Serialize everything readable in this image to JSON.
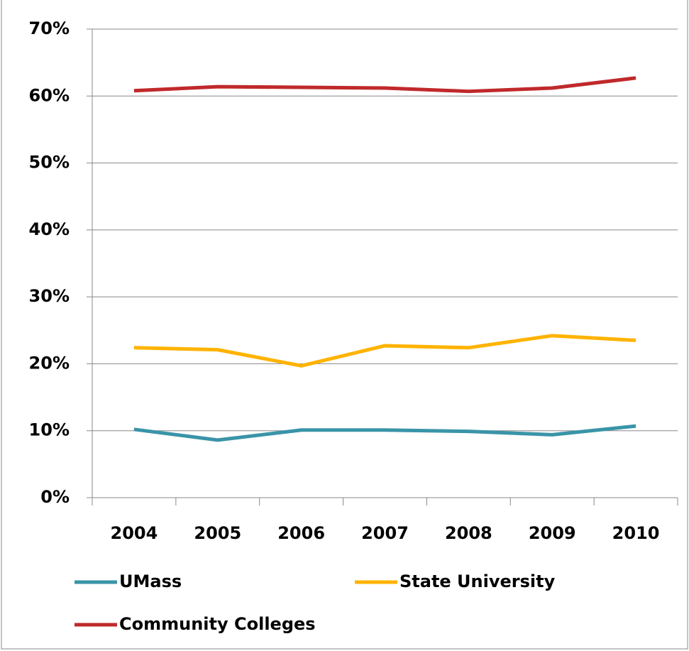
{
  "chart_data": {
    "type": "line",
    "categories": [
      "2004",
      "2005",
      "2006",
      "2007",
      "2008",
      "2009",
      "2010"
    ],
    "series": [
      {
        "name": "UMass",
        "color": "#3a94a8",
        "values": [
          10.2,
          8.6,
          10.1,
          10.1,
          9.9,
          9.4,
          10.7
        ]
      },
      {
        "name": "State University",
        "color": "#ffb300",
        "values": [
          22.4,
          22.1,
          19.7,
          22.7,
          22.4,
          24.2,
          23.5
        ]
      },
      {
        "name": "Community Colleges",
        "color": "#c0292b",
        "values": [
          60.8,
          61.4,
          61.3,
          61.2,
          60.7,
          61.2,
          62.7
        ]
      }
    ],
    "ylim": [
      0,
      70
    ],
    "yticks": [
      {
        "value": 0,
        "label": "0%"
      },
      {
        "value": 10,
        "label": "10%"
      },
      {
        "value": 20,
        "label": "20%"
      },
      {
        "value": 30,
        "label": "30%"
      },
      {
        "value": 40,
        "label": "40%"
      },
      {
        "value": 50,
        "label": "50%"
      },
      {
        "value": 60,
        "label": "60%"
      },
      {
        "value": 70,
        "label": "70%"
      }
    ],
    "grid": true
  }
}
